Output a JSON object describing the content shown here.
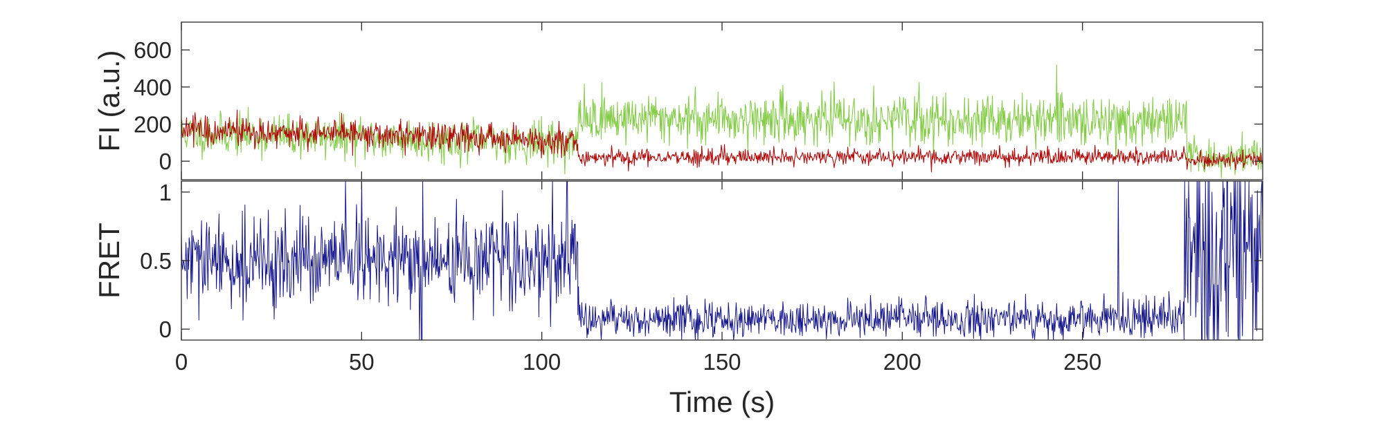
{
  "chart_data": [
    {
      "type": "line",
      "ylabel": "FI (a.u.)",
      "xlim": [
        0,
        300
      ],
      "ylim": [
        -100,
        750
      ],
      "xticks": [
        0,
        50,
        100,
        150,
        200,
        250
      ],
      "yticks": [
        0,
        200,
        400,
        600
      ],
      "grid": false,
      "series": [
        {
          "color": "#86cc4a",
          "segments": [
            {
              "x": [
                0,
                110
              ],
              "y_start": 150,
              "y_end": 95,
              "noise": 55
            },
            {
              "x": [
                110,
                279
              ],
              "y_start": 235,
              "y_end": 215,
              "noise": 65
            },
            {
              "x": [
                279,
                300
              ],
              "y_start": 25,
              "y_end": 20,
              "noise": 45
            }
          ]
        },
        {
          "color": "#b00a0a",
          "segments": [
            {
              "x": [
                0,
                110
              ],
              "y_start": 170,
              "y_end": 110,
              "noise": 40
            },
            {
              "x": [
                110,
                279
              ],
              "y_start": 20,
              "y_end": 25,
              "noise": 22
            },
            {
              "x": [
                279,
                300
              ],
              "y_start": 5,
              "y_end": 10,
              "noise": 22
            }
          ]
        }
      ]
    },
    {
      "type": "line",
      "ylabel": "FRET",
      "xlabel": "Time (s)",
      "xlim": [
        0,
        300
      ],
      "ylim": [
        -0.08,
        1.08
      ],
      "xticks": [
        0,
        50,
        100,
        150,
        200,
        250
      ],
      "yticks": [
        0,
        0.5,
        1
      ],
      "ytick_labels": [
        "0",
        "0.5",
        "1"
      ],
      "grid": false,
      "series": [
        {
          "color": "#14148c",
          "segments": [
            {
              "x": [
                0,
                110
              ],
              "y_start": 0.48,
              "y_end": 0.5,
              "noise": 0.16
            },
            {
              "x": [
                110,
                278
              ],
              "y_start": 0.07,
              "y_end": 0.08,
              "noise": 0.07
            },
            {
              "x": [
                278,
                300
              ],
              "y_start": 0.5,
              "y_end": 0.55,
              "noise": 0.45
            }
          ],
          "spikes": [
            {
              "x": 45.5,
              "y": 1.08
            },
            {
              "x": 50,
              "y": 1.08
            },
            {
              "x": 66,
              "y": -0.08
            },
            {
              "x": 66.7,
              "y": -0.08
            },
            {
              "x": 67,
              "y": 1.08
            },
            {
              "x": 103,
              "y": 1.08
            },
            {
              "x": 107,
              "y": 1.08
            },
            {
              "x": 260,
              "y": 1.08
            }
          ]
        }
      ]
    }
  ]
}
